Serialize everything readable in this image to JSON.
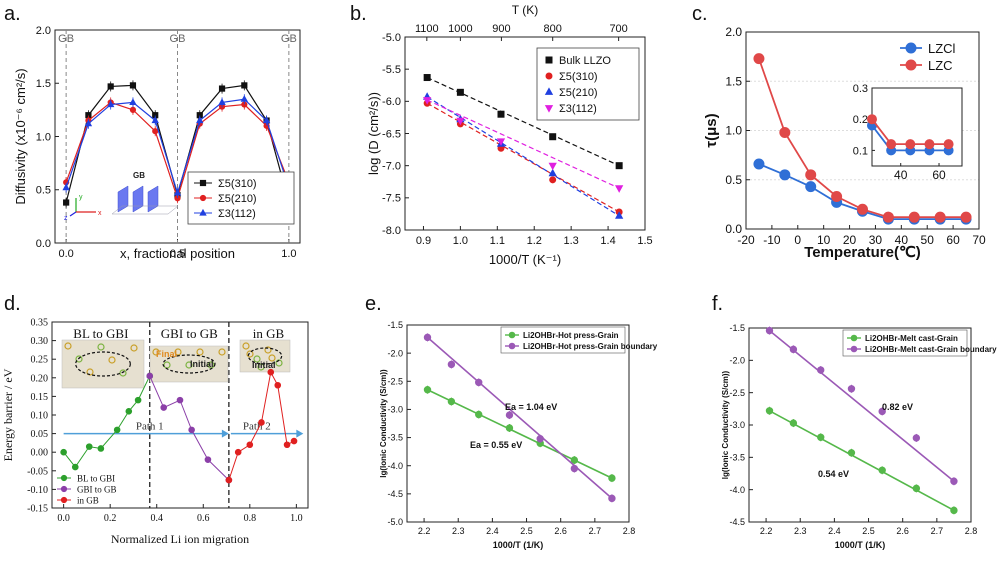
{
  "chart_data": [
    {
      "panel_label": "a.",
      "type": "line",
      "title": "",
      "xlabel": "x, fractional position",
      "ylabel": "Diffusivity (x10⁻⁶ cm²/s)",
      "xlim": [
        -0.05,
        1.05
      ],
      "ylim": [
        0,
        2.0
      ],
      "xticks": [
        "0.0",
        "0.5",
        "1.0"
      ],
      "xtick_values": [
        0,
        0.5,
        1.0
      ],
      "yticks": [
        "0.0",
        "0.5",
        "1.0",
        "1.5",
        "2.0"
      ],
      "ytick_values": [
        0,
        0.5,
        1.0,
        1.5,
        2.0
      ],
      "gb_labels": [
        "GB",
        "GB",
        "GB"
      ],
      "gb_positions": [
        0,
        0.5,
        1.0
      ],
      "inset_label": "GB",
      "axis_letters": [
        "y",
        "z",
        "x"
      ],
      "legend_position": "bottom-right",
      "x": [
        0,
        0.1,
        0.2,
        0.3,
        0.4,
        0.5,
        0.6,
        0.7,
        0.8,
        0.9,
        1.0
      ],
      "series": [
        {
          "name": "Σ5(310)",
          "color": "#111111",
          "marker": "square",
          "values": [
            0.38,
            1.2,
            1.47,
            1.48,
            1.2,
            0.45,
            1.2,
            1.45,
            1.48,
            1.15,
            0.38
          ]
        },
        {
          "name": "Σ5(210)",
          "color": "#e02020",
          "marker": "circle",
          "values": [
            0.57,
            1.15,
            1.32,
            1.25,
            1.05,
            0.42,
            1.12,
            1.28,
            1.3,
            1.1,
            0.57
          ]
        },
        {
          "name": "Σ3(112)",
          "color": "#2040e0",
          "marker": "triangle",
          "values": [
            0.52,
            1.12,
            1.3,
            1.32,
            1.15,
            0.47,
            1.15,
            1.32,
            1.35,
            1.15,
            0.52
          ]
        }
      ]
    },
    {
      "panel_label": "b.",
      "type": "scatter",
      "title": "",
      "xlabel": "1000/T (K⁻¹)",
      "ylabel": "log (D (cm²/s))",
      "top_xlabel": "T (K)",
      "top_ticks": [
        "1100",
        "1000",
        "900",
        "800",
        "700"
      ],
      "top_tick_values": [
        1100,
        1000,
        900,
        800,
        700
      ],
      "xlim": [
        0.85,
        1.5
      ],
      "ylim": [
        -8.0,
        -5.0
      ],
      "xticks": [
        "0.9",
        "1.0",
        "1.1",
        "1.2",
        "1.3",
        "1.4",
        "1.5"
      ],
      "xtick_values": [
        0.9,
        1.0,
        1.1,
        1.2,
        1.3,
        1.4,
        1.5
      ],
      "yticks": [
        "-5.0",
        "-5.5",
        "-6.0",
        "-6.5",
        "-7.0",
        "-7.5",
        "-8.0"
      ],
      "ytick_values": [
        -5.0,
        -5.5,
        -6.0,
        -6.5,
        -7.0,
        -7.5,
        -8.0
      ],
      "legend_position": "top-right",
      "series": [
        {
          "name": "Bulk LLZO",
          "color": "#111111",
          "marker": "square",
          "x": [
            0.91,
            1.0,
            1.11,
            1.25,
            1.43
          ],
          "y": [
            -5.63,
            -5.86,
            -6.2,
            -6.55,
            -7.0
          ]
        },
        {
          "name": "Σ5(310)",
          "color": "#e02020",
          "marker": "circle",
          "x": [
            0.91,
            1.0,
            1.11,
            1.25,
            1.43
          ],
          "y": [
            -6.03,
            -6.35,
            -6.73,
            -7.22,
            -7.72
          ]
        },
        {
          "name": "Σ5(210)",
          "color": "#2040e0",
          "marker": "triangle",
          "x": [
            0.91,
            1.0,
            1.11,
            1.25,
            1.43
          ],
          "y": [
            -5.93,
            -6.28,
            -6.66,
            -7.12,
            -7.78
          ]
        },
        {
          "name": "Σ3(112)",
          "color": "#e020e0",
          "marker": "triangle-down",
          "x": [
            0.91,
            1.0,
            1.11,
            1.25,
            1.43
          ],
          "y": [
            -5.98,
            -6.3,
            -6.62,
            -7.0,
            -7.35
          ]
        }
      ]
    },
    {
      "panel_label": "c.",
      "type": "line",
      "title": "",
      "xlabel": "Temperature(℃)",
      "ylabel": "τ(μs)",
      "xlim": [
        -20,
        70
      ],
      "ylim": [
        0,
        2.0
      ],
      "xticks": [
        "-20",
        "-10",
        "0",
        "10",
        "20",
        "30",
        "40",
        "50",
        "60",
        "70"
      ],
      "xtick_values": [
        -20,
        -10,
        0,
        10,
        20,
        30,
        40,
        50,
        60,
        70
      ],
      "yticks": [
        "0.0",
        "0.5",
        "1.0",
        "1.5",
        "2.0"
      ],
      "ytick_values": [
        0,
        0.5,
        1.0,
        1.5,
        2.0
      ],
      "legend_position": "top-right",
      "inset": {
        "xlim": [
          25,
          72
        ],
        "ylim": [
          0.05,
          0.3
        ],
        "xticks": [
          "40",
          "60"
        ],
        "xtick_values": [
          40,
          60
        ],
        "yticks": [
          "0.1",
          "0.2",
          "0.3"
        ],
        "ytick_values": [
          0.1,
          0.2,
          0.3
        ]
      },
      "x": [
        -15,
        -5,
        5,
        15,
        25,
        35,
        45,
        55,
        65
      ],
      "series": [
        {
          "name": "LZCl",
          "color": "#2f6fd6",
          "values": [
            0.66,
            0.55,
            0.43,
            0.27,
            0.18,
            0.1,
            0.1,
            0.1,
            0.1
          ]
        },
        {
          "name": "LZC",
          "color": "#e04848",
          "values": [
            1.73,
            0.98,
            0.55,
            0.33,
            0.2,
            0.12,
            0.12,
            0.12,
            0.12
          ]
        }
      ]
    },
    {
      "panel_label": "d.",
      "type": "line",
      "title": "",
      "xlabel": "Normalized Li ion migration",
      "ylabel": "Energy barrier / eV",
      "xlim": [
        -0.05,
        1.05
      ],
      "ylim": [
        -0.15,
        0.35
      ],
      "xticks": [
        "0.0",
        "0.2",
        "0.4",
        "0.6",
        "0.8",
        "1.0"
      ],
      "xtick_values": [
        0,
        0.2,
        0.4,
        0.6,
        0.8,
        1.0
      ],
      "yticks": [
        "-0.15",
        "-0.10",
        "-0.05",
        "0.00",
        "0.05",
        "0.10",
        "0.15",
        "0.20",
        "0.25",
        "0.30",
        "0.35"
      ],
      "ytick_values": [
        -0.15,
        -0.1,
        -0.05,
        0,
        0.05,
        0.1,
        0.15,
        0.2,
        0.25,
        0.3,
        0.35
      ],
      "region_labels": [
        "BL to GBI",
        "GBI to GB",
        "in GB"
      ],
      "region_dividers": [
        0.37,
        0.71
      ],
      "arrow_labels": [
        "Path 1",
        "Path 2"
      ],
      "inset_texts": [
        "Final",
        "Initial",
        "Initial"
      ],
      "legend_position": "bottom-left",
      "series": [
        {
          "name": "BL to GBI",
          "color": "#2ca02c",
          "x": [
            0,
            0.05,
            0.11,
            0.16,
            0.23,
            0.28,
            0.32,
            0.37
          ],
          "y": [
            0.0,
            -0.04,
            0.015,
            0.01,
            0.06,
            0.11,
            0.14,
            0.205
          ]
        },
        {
          "name": "GBI to GB",
          "color": "#8b3fa8",
          "x": [
            0.37,
            0.43,
            0.5,
            0.55,
            0.62,
            0.71
          ],
          "y": [
            0.205,
            0.12,
            0.14,
            0.06,
            -0.02,
            -0.075
          ]
        },
        {
          "name": "in GB",
          "color": "#e02020",
          "x": [
            0.71,
            0.75,
            0.8,
            0.85,
            0.89,
            0.92,
            0.96,
            0.99
          ],
          "y": [
            -0.075,
            0.0,
            0.02,
            0.08,
            0.215,
            0.18,
            0.02,
            0.03
          ]
        }
      ]
    },
    {
      "panel_label": "e.",
      "type": "line",
      "title": "",
      "xlabel": "1000/T (1/K)",
      "ylabel": "lg(Ionic Conductivity (S/cm))",
      "xlim": [
        2.15,
        2.8
      ],
      "ylim": [
        -5.0,
        -1.5
      ],
      "xticks": [
        "2.2",
        "2.3",
        "2.4",
        "2.5",
        "2.6",
        "2.7",
        "2.8"
      ],
      "xtick_values": [
        2.2,
        2.3,
        2.4,
        2.5,
        2.6,
        2.7,
        2.8
      ],
      "yticks": [
        "-1.5",
        "-2.0",
        "-2.5",
        "-3.0",
        "-3.5",
        "-4.0",
        "-4.5",
        "-5.0"
      ],
      "ytick_values": [
        -1.5,
        -2.0,
        -2.5,
        -3.0,
        -3.5,
        -4.0,
        -4.5,
        -5.0
      ],
      "annotations": [
        "Ea = 1.04 eV",
        "Ea = 0.55 eV"
      ],
      "legend_position": "top-right",
      "series": [
        {
          "name": "Li2OHBr-Hot press-Grain",
          "color": "#55b84a",
          "x": [
            2.21,
            2.28,
            2.36,
            2.45,
            2.54,
            2.64,
            2.75
          ],
          "y": [
            -2.65,
            -2.86,
            -3.09,
            -3.33,
            -3.6,
            -3.9,
            -4.22
          ]
        },
        {
          "name": "Li2OHBr-Hot press-Grain boundary",
          "color": "#9b59b6",
          "x": [
            2.21,
            2.28,
            2.36,
            2.45,
            2.54,
            2.64,
            2.75
          ],
          "y": [
            -1.72,
            -2.2,
            -2.52,
            -3.1,
            -3.52,
            -4.05,
            -4.58
          ]
        }
      ]
    },
    {
      "panel_label": "f.",
      "type": "line",
      "title": "",
      "xlabel": "1000/T (1/K)",
      "ylabel": "lg(Ionic Conductivity (S/cm))",
      "xlim": [
        2.15,
        2.8
      ],
      "ylim": [
        -4.5,
        -1.5
      ],
      "xticks": [
        "2.2",
        "2.3",
        "2.4",
        "2.5",
        "2.6",
        "2.7",
        "2.8"
      ],
      "xtick_values": [
        2.2,
        2.3,
        2.4,
        2.5,
        2.6,
        2.7,
        2.8
      ],
      "yticks": [
        "-1.5",
        "-2.0",
        "-2.5",
        "-3.0",
        "-3.5",
        "-4.0",
        "-4.5"
      ],
      "ytick_values": [
        -1.5,
        -2.0,
        -2.5,
        -3.0,
        -3.5,
        -4.0,
        -4.5
      ],
      "annotations": [
        "0.82 eV",
        "0.54 eV"
      ],
      "legend_position": "top-right",
      "series": [
        {
          "name": "Li2OHBr-Melt cast-Grain",
          "color": "#55b84a",
          "x": [
            2.21,
            2.28,
            2.36,
            2.45,
            2.54,
            2.64,
            2.75
          ],
          "y": [
            -2.78,
            -2.97,
            -3.19,
            -3.43,
            -3.7,
            -3.98,
            -4.32
          ]
        },
        {
          "name": "Li2OHBr-Melt cast-Grain boundary",
          "color": "#9b59b6",
          "x": [
            2.21,
            2.28,
            2.36,
            2.45,
            2.54,
            2.64,
            2.75
          ],
          "y": [
            -1.54,
            -1.83,
            -2.15,
            -2.44,
            -2.79,
            -3.2,
            -3.87
          ]
        }
      ]
    }
  ]
}
